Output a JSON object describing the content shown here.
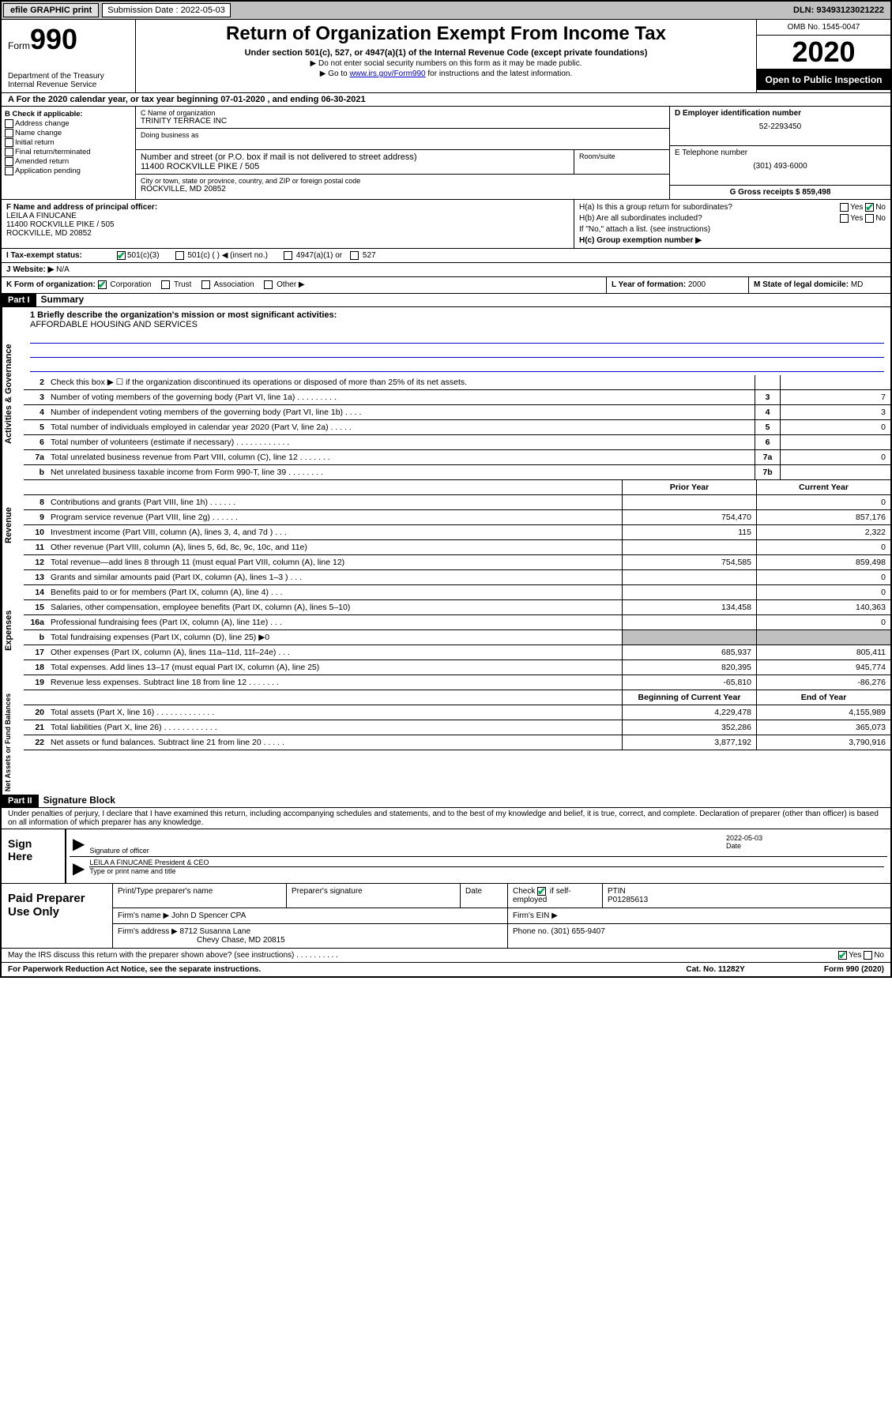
{
  "topbar": {
    "btn1": "efile GRAPHIC print",
    "submission_label": "Submission Date : 2022-05-03",
    "dln": "DLN: 93493123021222"
  },
  "header": {
    "form_label": "Form",
    "form_number": "990",
    "dept": "Department of the Treasury",
    "irs": "Internal Revenue Service",
    "title": "Return of Organization Exempt From Income Tax",
    "subtitle": "Under section 501(c), 527, or 4947(a)(1) of the Internal Revenue Code (except private foundations)",
    "note1": "▶ Do not enter social security numbers on this form as it may be made public.",
    "note2_pre": "▶ Go to ",
    "note2_link": "www.irs.gov/Form990",
    "note2_post": " for instructions and the latest information.",
    "omb": "OMB No. 1545-0047",
    "year": "2020",
    "inspection": "Open to Public Inspection"
  },
  "row_a": "A For the 2020 calendar year, or tax year beginning 07-01-2020    , and ending 06-30-2021",
  "section_b": {
    "header": "B Check if applicable:",
    "opts": [
      "Address change",
      "Name change",
      "Initial return",
      "Final return/terminated",
      "Amended return",
      "Application pending"
    ],
    "c_label": "C Name of organization",
    "c_name": "TRINITY TERRACE INC",
    "dba_label": "Doing business as",
    "addr_label": "Number and street (or P.O. box if mail is not delivered to street address)",
    "addr": "11400 ROCKVILLE PIKE / 505",
    "room_label": "Room/suite",
    "city_label": "City or town, state or province, country, and ZIP or foreign postal code",
    "city": "ROCKVILLE, MD  20852",
    "d_label": "D Employer identification number",
    "d_val": "52-2293450",
    "e_label": "E Telephone number",
    "e_val": "(301) 493-6000",
    "g_label": "G Gross receipts $ 859,498"
  },
  "section_fh": {
    "f_label": "F  Name and address of principal officer:",
    "f_name": "LEILA A FINUCANE",
    "f_addr1": "11400 ROCKVILLE PIKE / 505",
    "f_addr2": "ROCKVILLE, MD  20852",
    "ha_label": "H(a)  Is this a group return for subordinates?",
    "hb_label": "H(b)  Are all subordinates included?",
    "h_note": "If \"No,\" attach a list. (see instructions)",
    "hc_label": "H(c)  Group exemption number ▶"
  },
  "row_i": {
    "label": "I  Tax-exempt status:",
    "o1": "501(c)(3)",
    "o2": "501(c) (   ) ◀ (insert no.)",
    "o3": "4947(a)(1) or",
    "o4": "527"
  },
  "row_j": {
    "label": "J  Website: ▶",
    "val": "N/A"
  },
  "row_k": {
    "label": "K Form of organization:",
    "o1": "Corporation",
    "o2": "Trust",
    "o3": "Association",
    "o4": "Other ▶",
    "l_label": "L Year of formation:",
    "l_val": "2000",
    "m_label": "M State of legal domicile:",
    "m_val": "MD"
  },
  "part1": {
    "label": "Part I",
    "title": "Summary"
  },
  "mission": {
    "line1": "1  Briefly describe the organization's mission or most significant activities:",
    "text": "AFFORDABLE HOUSING AND SERVICES"
  },
  "gov_lines": [
    {
      "num": "2",
      "desc": "Check this box ▶ ☐  if the organization discontinued its operations or disposed of more than 25% of its net assets.",
      "box": "",
      "val": ""
    },
    {
      "num": "3",
      "desc": "Number of voting members of the governing body (Part VI, line 1a)  .   .   .   .   .   .   .   .   .",
      "box": "3",
      "val": "7"
    },
    {
      "num": "4",
      "desc": "Number of independent voting members of the governing body (Part VI, line 1b)   .   .   .   .",
      "box": "4",
      "val": "3"
    },
    {
      "num": "5",
      "desc": "Total number of individuals employed in calendar year 2020 (Part V, line 2a)   .   .   .   .   .",
      "box": "5",
      "val": "0"
    },
    {
      "num": "6",
      "desc": "Total number of volunteers (estimate if necessary)   .   .   .   .   .   .   .   .   .   .   .   .",
      "box": "6",
      "val": ""
    },
    {
      "num": "7a",
      "desc": "Total unrelated business revenue from Part VIII, column (C), line 12   .   .   .   .   .   .   .",
      "box": "7a",
      "val": "0"
    },
    {
      "num": "b",
      "desc": "Net unrelated business taxable income from Form 990-T, line 39   .   .   .   .   .   .   .   .",
      "box": "7b",
      "val": ""
    }
  ],
  "two_col_header": {
    "prior": "Prior Year",
    "curr": "Current Year"
  },
  "revenue_lines": [
    {
      "num": "8",
      "desc": "Contributions and grants (Part VIII, line 1h)   .   .   .   .   .   .",
      "prior": "",
      "curr": "0"
    },
    {
      "num": "9",
      "desc": "Program service revenue (Part VIII, line 2g)   .   .   .   .   .   .",
      "prior": "754,470",
      "curr": "857,176"
    },
    {
      "num": "10",
      "desc": "Investment income (Part VIII, column (A), lines 3, 4, and 7d )   .   .   .",
      "prior": "115",
      "curr": "2,322"
    },
    {
      "num": "11",
      "desc": "Other revenue (Part VIII, column (A), lines 5, 6d, 8c, 9c, 10c, and 11e)",
      "prior": "",
      "curr": "0"
    },
    {
      "num": "12",
      "desc": "Total revenue—add lines 8 through 11 (must equal Part VIII, column (A), line 12)",
      "prior": "754,585",
      "curr": "859,498"
    }
  ],
  "expense_lines": [
    {
      "num": "13",
      "desc": "Grants and similar amounts paid (Part IX, column (A), lines 1–3 )   .   .   .",
      "prior": "",
      "curr": "0"
    },
    {
      "num": "14",
      "desc": "Benefits paid to or for members (Part IX, column (A), line 4)   .   .   .",
      "prior": "",
      "curr": "0"
    },
    {
      "num": "15",
      "desc": "Salaries, other compensation, employee benefits (Part IX, column (A), lines 5–10)",
      "prior": "134,458",
      "curr": "140,363"
    },
    {
      "num": "16a",
      "desc": "Professional fundraising fees (Part IX, column (A), line 11e)   .   .   .",
      "prior": "",
      "curr": "0"
    },
    {
      "num": "b",
      "desc": "Total fundraising expenses (Part IX, column (D), line 25) ▶0",
      "prior": "SHADE",
      "curr": "SHADE"
    },
    {
      "num": "17",
      "desc": "Other expenses (Part IX, column (A), lines 11a–11d, 11f–24e)   .   .   .",
      "prior": "685,937",
      "curr": "805,411"
    },
    {
      "num": "18",
      "desc": "Total expenses. Add lines 13–17 (must equal Part IX, column (A), line 25)",
      "prior": "820,395",
      "curr": "945,774"
    },
    {
      "num": "19",
      "desc": "Revenue less expenses. Subtract line 18 from line 12   .   .   .   .   .   .   .",
      "prior": "-65,810",
      "curr": "-86,276"
    }
  ],
  "net_header": {
    "prior": "Beginning of Current Year",
    "curr": "End of Year"
  },
  "net_lines": [
    {
      "num": "20",
      "desc": "Total assets (Part X, line 16)   .   .   .   .   .   .   .   .   .   .   .   .   .",
      "prior": "4,229,478",
      "curr": "4,155,989"
    },
    {
      "num": "21",
      "desc": "Total liabilities (Part X, line 26)   .   .   .   .   .   .   .   .   .   .   .   .",
      "prior": "352,286",
      "curr": "365,073"
    },
    {
      "num": "22",
      "desc": "Net assets or fund balances. Subtract line 21 from line 20   .   .   .   .   .",
      "prior": "3,877,192",
      "curr": "3,790,916"
    }
  ],
  "part2": {
    "label": "Part II",
    "title": "Signature Block"
  },
  "perjury": "Under penalties of perjury, I declare that I have examined this return, including accompanying schedules and statements, and to the best of my knowledge and belief, it is true, correct, and complete. Declaration of preparer (other than officer) is based on all information of which preparer has any knowledge.",
  "sign": {
    "label": "Sign Here",
    "sig_label": "Signature of officer",
    "date": "2022-05-03",
    "date_label": "Date",
    "name": "LEILA A FINUCANE  President & CEO",
    "name_label": "Type or print name and title"
  },
  "prep": {
    "label": "Paid Preparer Use Only",
    "col1": "Print/Type preparer's name",
    "col2": "Preparer's signature",
    "col3": "Date",
    "col4_pre": "Check",
    "col4_post": "if self-employed",
    "ptin_label": "PTIN",
    "ptin": "P01285613",
    "firm_label": "Firm's name    ▶",
    "firm": "John D Spencer CPA",
    "ein_label": "Firm's EIN ▶",
    "addr_label": "Firm's address ▶",
    "addr1": "8712 Susanna Lane",
    "addr2": "Chevy Chase, MD  20815",
    "phone_label": "Phone no.",
    "phone": "(301) 655-9407"
  },
  "footer": {
    "discuss": "May the IRS discuss this return with the preparer shown above? (see instructions)   .   .   .   .   .   .   .   .   .   .",
    "yes": "Yes",
    "no": "No",
    "paperwork": "For Paperwork Reduction Act Notice, see the separate instructions.",
    "cat": "Cat. No. 11282Y",
    "form": "Form 990 (2020)"
  },
  "vert_labels": {
    "gov": "Activities & Governance",
    "rev": "Revenue",
    "exp": "Expenses",
    "net": "Net Assets or Fund Balances"
  }
}
